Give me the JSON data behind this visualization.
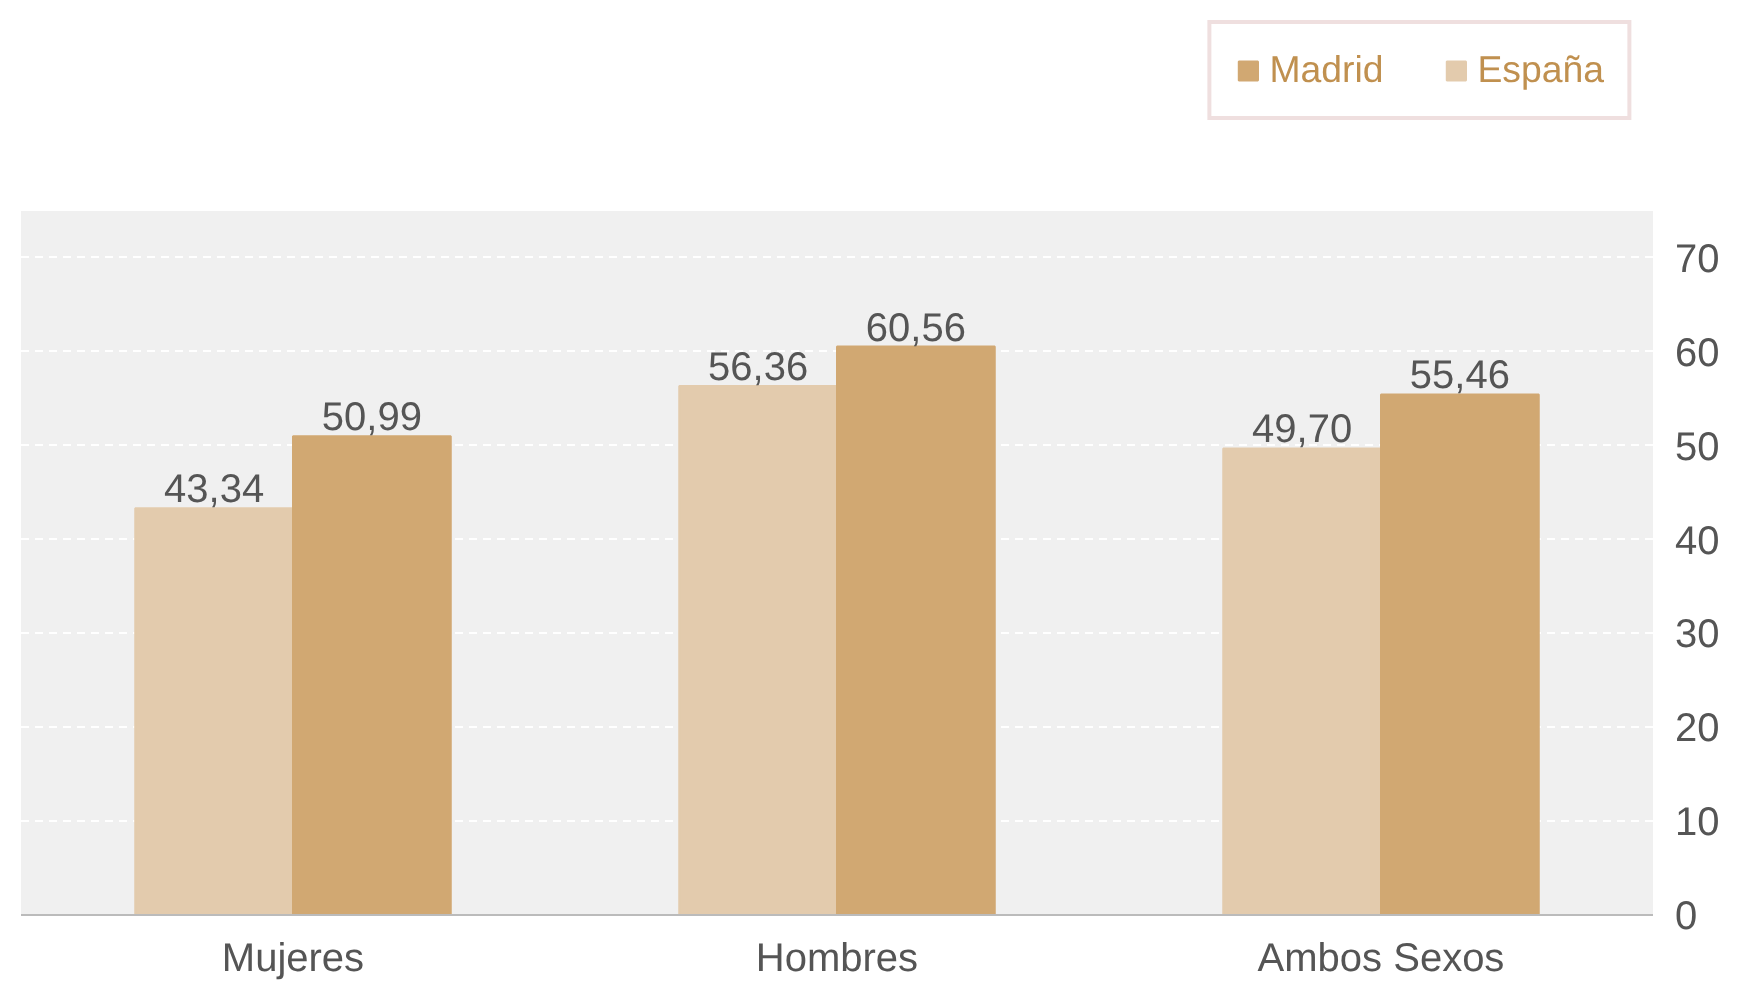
{
  "chart_data": {
    "type": "bar",
    "categories": [
      "Mujeres",
      "Hombres",
      "Ambos Sexos"
    ],
    "series": [
      {
        "name": "España",
        "color": "#e3cbad",
        "values": [
          43.34,
          56.36,
          49.7
        ],
        "value_labels": [
          "43,34",
          "56,36",
          "49,70"
        ]
      },
      {
        "name": "Madrid",
        "color": "#d1a872",
        "values": [
          50.99,
          60.56,
          55.46
        ],
        "value_labels": [
          "50,99",
          "60,56",
          "55,46"
        ]
      }
    ],
    "ylim": [
      0,
      75
    ],
    "yticks": [
      0,
      10,
      20,
      30,
      40,
      50,
      60,
      70
    ],
    "grid": "y",
    "legend": "top right"
  }
}
